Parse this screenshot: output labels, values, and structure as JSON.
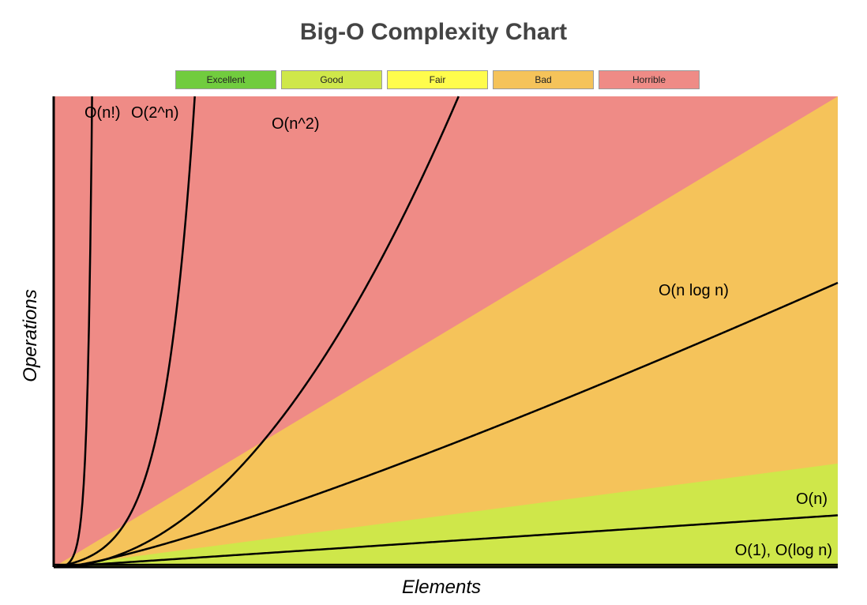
{
  "chart_data": {
    "type": "line",
    "title": "Big-O Complexity Chart",
    "xlabel": "Elements",
    "ylabel": "Operations",
    "xlim": [
      0,
      100
    ],
    "ylim": [
      0,
      100
    ],
    "grid": false,
    "legend_position": "top-center",
    "legend": [
      {
        "label": "Excellent",
        "color": "#71cc3e"
      },
      {
        "label": "Good",
        "color": "#cfe74a"
      },
      {
        "label": "Fair",
        "color": "#fffc4c"
      },
      {
        "label": "Bad",
        "color": "#f5c35a"
      },
      {
        "label": "Horrible",
        "color": "#ef8b86"
      }
    ],
    "regions": [
      {
        "name": "Horrible",
        "color": "#ef8b86",
        "upper_slope": null
      },
      {
        "name": "Bad",
        "color": "#f5c35a",
        "upper_slope": 1.0
      },
      {
        "name": "Good",
        "color": "#cfe74a",
        "upper_slope": 0.22
      }
    ],
    "series": [
      {
        "name": "O(1), O(log n)",
        "label": "O(1), O(log n)",
        "func": "const",
        "scale": 0.5
      },
      {
        "name": "O(n)",
        "label": "O(n)",
        "func": "linear",
        "scale": 0.11
      },
      {
        "name": "O(n log n)",
        "label": "O(n log n)",
        "func": "nlogn",
        "scale": 0.2
      },
      {
        "name": "O(n^2)",
        "label": "O(n^2)",
        "func": "square",
        "scale": 0.0375
      },
      {
        "name": "O(2^n)",
        "label": "O(2^n)",
        "func": "exp2",
        "scale": 0.37
      },
      {
        "name": "O(n!)",
        "label": "O(n!)",
        "func": "fact",
        "scale": 1.0
      }
    ]
  }
}
